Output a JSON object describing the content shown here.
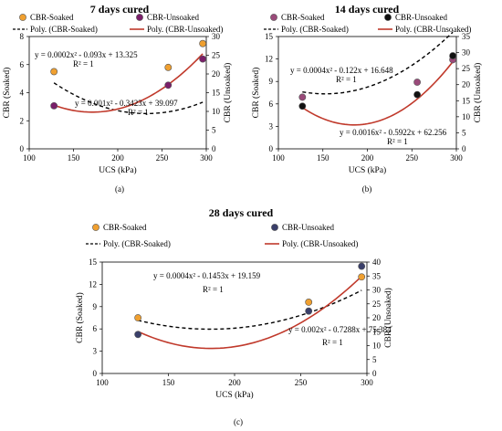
{
  "chart_data": [
    {
      "type": "scatter",
      "panel_label": "(a)",
      "title": "7 days cured",
      "xlabel": "UCS (kPa)",
      "ylabel_left": "CBR (Soaked)",
      "ylabel_right": "CBR (Unsoaked)",
      "xlim": [
        100,
        300
      ],
      "x_ticks": [
        "100",
        "150",
        "200",
        "250",
        "300"
      ],
      "ylim_left": [
        0,
        8
      ],
      "y_ticks_left": [
        "0",
        "2",
        "4",
        "6",
        "8"
      ],
      "ylim_right": [
        0,
        30
      ],
      "y_ticks_right": [
        "0",
        "5",
        "10",
        "15",
        "20",
        "25",
        "30"
      ],
      "legend": {
        "soaked_points": "CBR-Soaked",
        "unsoaked_points": "CBR-Unsoaked",
        "soaked_fit": "Poly. (CBR-Soaked)",
        "unsoaked_fit": "Poly. (CBR-Unsoaked)"
      },
      "series": [
        {
          "name": "CBR-Soaked",
          "axis": "left",
          "x": [
            128,
            257,
            296
          ],
          "y": [
            5.5,
            5.8,
            7.5
          ],
          "color": "#f0a030",
          "fit": {
            "a": 0.0002,
            "b": -0.093,
            "c": 13.325
          }
        },
        {
          "name": "CBR-Unsoaked",
          "axis": "right",
          "x": [
            128,
            257,
            296
          ],
          "y": [
            11.5,
            17.0,
            24.0
          ],
          "color": "#7a1f6a",
          "fit": {
            "a": 0.001,
            "b": -0.3423,
            "c": 39.097
          }
        }
      ],
      "annotations": [
        {
          "eq": "y = 0.0002x² - 0.093x + 13.325",
          "r2": "R² = 1"
        },
        {
          "eq": "y = 0.001x² - 0.3423x + 39.097",
          "r2": "R² = 1"
        }
      ]
    },
    {
      "type": "scatter",
      "panel_label": "(b)",
      "title": "14 days cured",
      "xlabel": "UCS (kPa)",
      "ylabel_left": "CBR (Soaked)",
      "ylabel_right": "CBR (Unsoaked)",
      "xlim": [
        100,
        300
      ],
      "x_ticks": [
        "100",
        "150",
        "200",
        "250",
        "300"
      ],
      "ylim_left": [
        0,
        15
      ],
      "y_ticks_left": [
        "0",
        "3",
        "6",
        "9",
        "12",
        "15"
      ],
      "ylim_right": [
        0,
        35
      ],
      "y_ticks_right": [
        "0",
        "5",
        "10",
        "15",
        "20",
        "25",
        "30",
        "35"
      ],
      "legend": {
        "soaked_points": "CBR-Soaked",
        "unsoaked_points": "CBR-Unsoaked",
        "soaked_fit": "Poly. (CBR-Soaked)",
        "unsoaked_fit": "Poly. (CBR-Unsoaked)"
      },
      "series": [
        {
          "name": "CBR-Soaked",
          "axis": "left",
          "x": [
            127,
            256,
            296
          ],
          "y": [
            6.9,
            8.9,
            11.9
          ],
          "color": "#9a4a7a",
          "fit": {
            "a": 0.0004,
            "b": -0.122,
            "c": 16.648
          }
        },
        {
          "name": "CBR-Unsoaked",
          "axis": "right",
          "x": [
            127,
            256,
            296
          ],
          "y": [
            13.3,
            16.9,
            29.0
          ],
          "color": "#111111",
          "fit": {
            "a": 0.0016,
            "b": -0.5922,
            "c": 62.256
          }
        }
      ],
      "annotations": [
        {
          "eq": "y = 0.0004x² - 0.122x + 16.648",
          "r2": "R² = 1"
        },
        {
          "eq": "y = 0.0016x² - 0.5922x + 62.256",
          "r2": "R² = 1"
        }
      ]
    },
    {
      "type": "scatter",
      "panel_label": "(c)",
      "title": "28 days cured",
      "xlabel": "UCS (kPa)",
      "ylabel_left": "CBR (Soaked)",
      "ylabel_right": "CBR (Unsoaked)",
      "xlim": [
        100,
        300
      ],
      "x_ticks": [
        "100",
        "150",
        "200",
        "250",
        "300"
      ],
      "ylim_left": [
        0,
        15
      ],
      "y_ticks_left": [
        "0",
        "3",
        "6",
        "9",
        "12",
        "15"
      ],
      "ylim_right": [
        0,
        40
      ],
      "y_ticks_right": [
        "0",
        "5",
        "10",
        "15",
        "20",
        "25",
        "30",
        "35",
        "40"
      ],
      "legend": {
        "soaked_points": "CBR-Soaked",
        "unsoaked_points": "CBR-Unsoaked",
        "soaked_fit": "Poly. (CBR-Soaked)",
        "unsoaked_fit": "Poly. (CBR-Unsoaked)"
      },
      "series": [
        {
          "name": "CBR-Soaked",
          "axis": "left",
          "x": [
            127,
            256,
            296
          ],
          "y": [
            7.5,
            9.6,
            13.0
          ],
          "color": "#f0a030",
          "fit": {
            "a": 0.0004,
            "b": -0.1453,
            "c": 19.159
          }
        },
        {
          "name": "CBR-Unsoaked",
          "axis": "right",
          "x": [
            127,
            256,
            296
          ],
          "y": [
            14.0,
            22.4,
            38.5
          ],
          "color": "#3a3f6a",
          "fit": {
            "a": 0.002,
            "b": -0.7288,
            "c": 75.384
          }
        }
      ],
      "annotations": [
        {
          "eq": "y = 0.0004x² - 0.1453x + 19.159",
          "r2": "R² = 1"
        },
        {
          "eq": "y = 0.002x² - 0.7288x + 75.384",
          "r2": "R² = 1"
        }
      ]
    }
  ]
}
